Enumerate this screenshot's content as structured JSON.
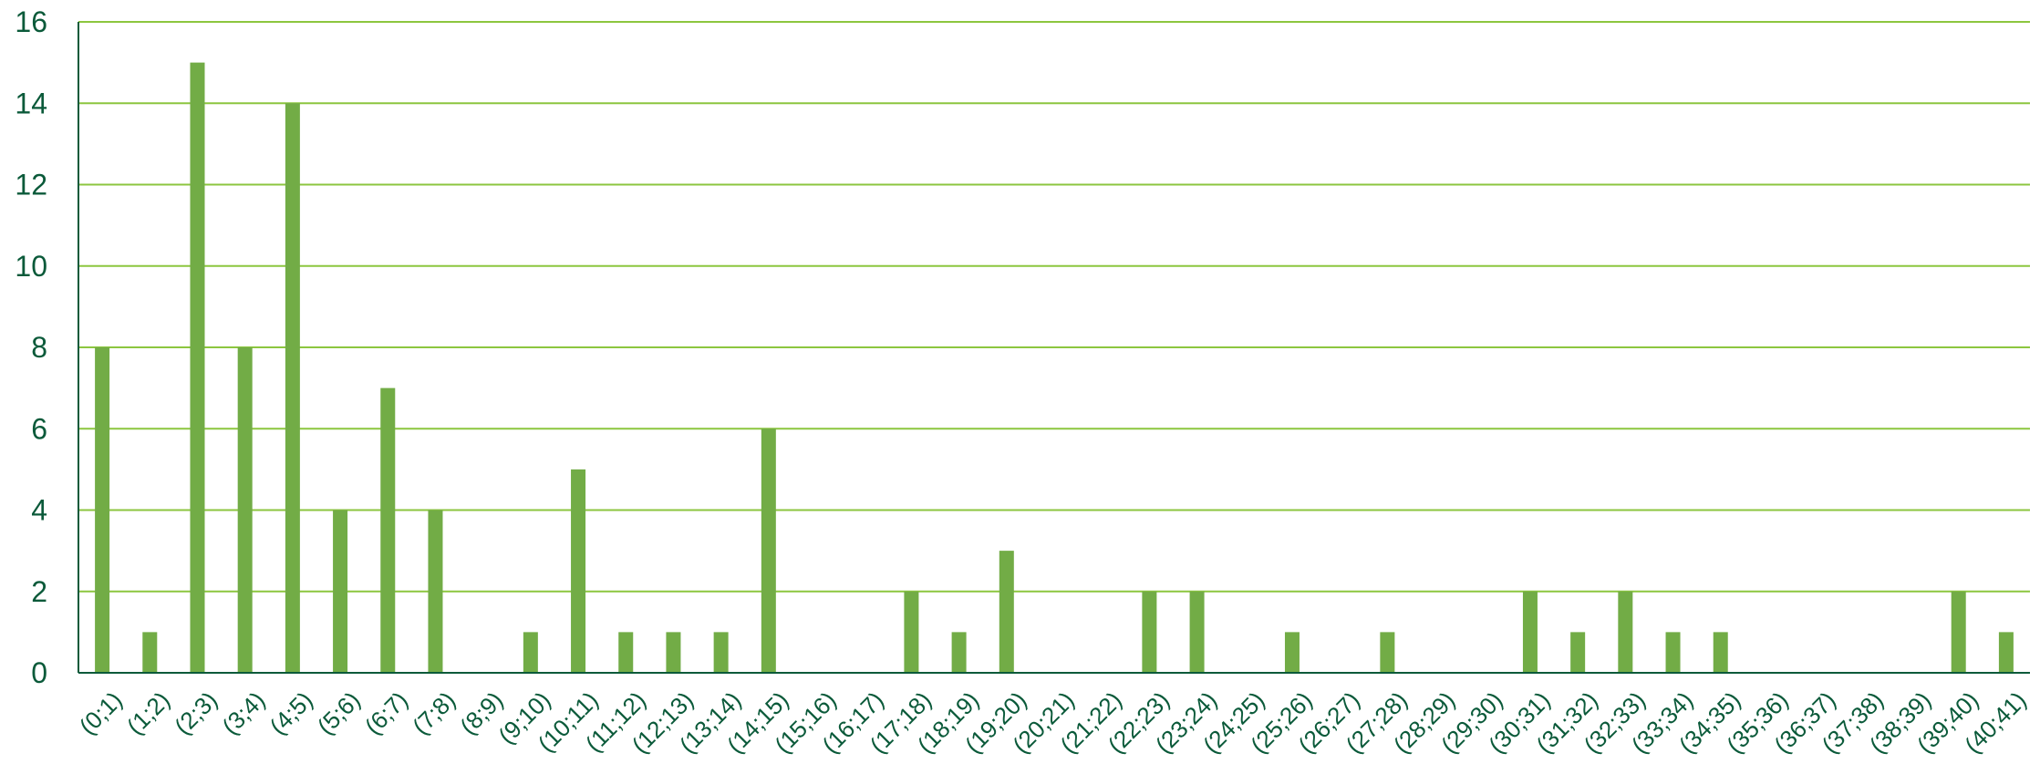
{
  "chart_data": {
    "type": "bar",
    "title": "",
    "xlabel": "",
    "ylabel": "",
    "categories": [
      "(0;1)",
      "(1;2)",
      "(2;3)",
      "(3;4)",
      "(4;5)",
      "(5;6)",
      "(6;7)",
      "(7;8)",
      "(8;9)",
      "(9;10)",
      "(10;11)",
      "(11;12)",
      "(12;13)",
      "(13;14)",
      "(14;15)",
      "(15;16)",
      "(16;17)",
      "(17;18)",
      "(18;19)",
      "(19;20)",
      "(20;21)",
      "(21;22)",
      "(22;23)",
      "(23;24)",
      "(24;25)",
      "(25;26)",
      "(26;27)",
      "(27;28)",
      "(28;29)",
      "(29;30)",
      "(30;31)",
      "(31;32)",
      "(32;33)",
      "(33;34)",
      "(34;35)",
      "(35;36)",
      "(36;37)",
      "(37;38)",
      "(38;39)",
      "(39;40)",
      "(40;41)"
    ],
    "values": [
      8,
      1,
      15,
      8,
      14,
      4,
      7,
      4,
      0,
      1,
      5,
      1,
      1,
      1,
      6,
      0,
      0,
      2,
      1,
      3,
      0,
      0,
      2,
      2,
      0,
      1,
      0,
      1,
      0,
      0,
      2,
      1,
      2,
      1,
      1,
      0,
      0,
      0,
      0,
      2,
      1
    ],
    "ylim": [
      0,
      16
    ],
    "yticks": [
      0,
      2,
      4,
      6,
      8,
      10,
      12,
      14,
      16
    ],
    "grid": true,
    "legend": "none",
    "colors": {
      "bar": "#72ac46",
      "grid": "#8cc63f",
      "axis": "#0b5a3a",
      "text": "#0b5a3a"
    }
  }
}
